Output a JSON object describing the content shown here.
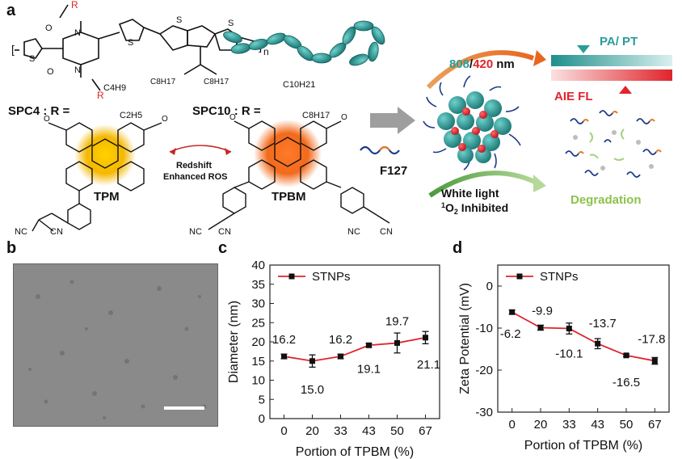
{
  "panels": {
    "a": "a",
    "b": "b",
    "c": "c",
    "d": "d"
  },
  "schematic": {
    "polymer_n": "n",
    "r_label": "R",
    "c8_left": "C8H17",
    "c8_right": "C8H17",
    "spc4_label": "SPC4 : R =",
    "spc4_sub1": "C4H9",
    "spc4_sub2": "C2H5",
    "spc10_label": "SPC10 : R =",
    "spc10_sub1": "C10H21",
    "spc10_sub2": "C8H17",
    "tpm": "TPM",
    "tpbm": "TPBM",
    "redshift": "Redshift",
    "enhanced_ros": "Enhanced ROS",
    "f127": "F127",
    "wavelength_808": "808",
    "wavelength_sep": "/",
    "wavelength_420": "420",
    "wavelength_unit": "nm",
    "pa_pt": "PA/ PT",
    "aie_fl": "AIE FL",
    "white_light": "White light",
    "o2_inhibited": "1O2 Inhibited",
    "degradation": "Degradation",
    "cn": "CN",
    "nc": "NC",
    "n_atom": "N",
    "o_atom": "O",
    "s_atom": "S",
    "ome": "O"
  },
  "colors": {
    "teal": "#2a9d9a",
    "red": "#e0242b",
    "orange_arrow": "#e27c2c",
    "green": "#8bc34a",
    "tpm_glow": "#f5b800",
    "tpbm_glow": "#f26a1b"
  },
  "chart_data": [
    {
      "type": "line",
      "panel": "c",
      "xlabel": "Portion of TPBM (%)",
      "ylabel": "Diameter (nm)",
      "categories": [
        "0",
        "20",
        "33",
        "43",
        "50",
        "67"
      ],
      "ylim": [
        0,
        40
      ],
      "yticks": [
        0,
        5,
        10,
        15,
        20,
        25,
        30,
        35,
        40
      ],
      "legend": "top-left",
      "series": [
        {
          "name": "STNPs",
          "values": [
            16.2,
            15.0,
            16.2,
            19.1,
            19.7,
            21.1
          ],
          "errors": [
            0.6,
            1.6,
            0.6,
            0.5,
            2.6,
            1.6
          ],
          "labels": [
            "16.2",
            "15.0",
            "16.2",
            "19.1",
            "19.7",
            "21.1"
          ]
        }
      ]
    },
    {
      "type": "line",
      "panel": "d",
      "xlabel": "Portion of TPBM (%)",
      "ylabel": "Zeta Potential (mV)",
      "categories": [
        "0",
        "20",
        "33",
        "43",
        "50",
        "67"
      ],
      "ylim": [
        -30,
        5
      ],
      "yticks": [
        0,
        -10,
        -20,
        -30
      ],
      "legend": "top-left",
      "series": [
        {
          "name": "STNPs",
          "values": [
            -6.2,
            -9.9,
            -10.1,
            -13.7,
            -16.5,
            -17.8
          ],
          "errors": [
            0.5,
            0.6,
            1.3,
            1.2,
            0.3,
            0.8
          ],
          "labels": [
            "-6.2",
            "-9.9",
            "-10.1",
            "-13.7",
            "-16.5",
            "-17.8"
          ]
        }
      ]
    }
  ]
}
